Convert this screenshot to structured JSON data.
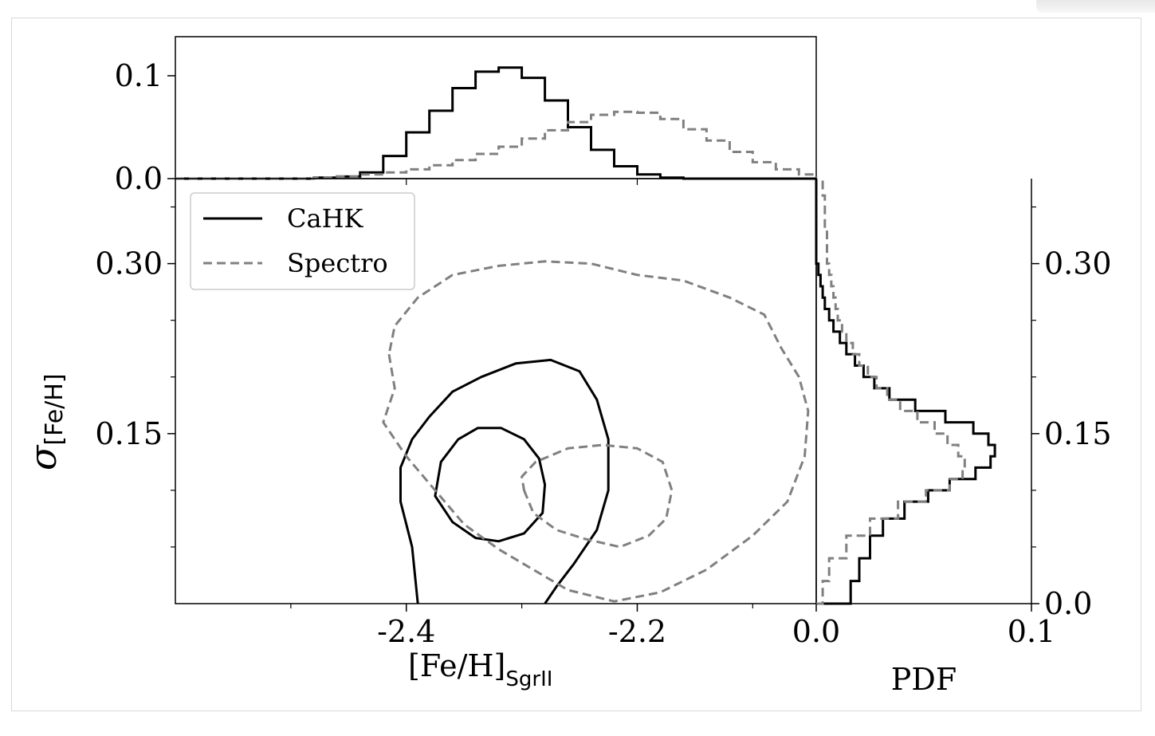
{
  "chart_data": {
    "type": "contour",
    "legend": {
      "placement": "upper-left",
      "entries": [
        {
          "name": "CaHK",
          "style": "solid",
          "color": "#000000"
        },
        {
          "name": "Spectro",
          "style": "dashed",
          "color": "#808080"
        }
      ]
    },
    "main": {
      "xlabel": "[Fe/H]",
      "xlabel_sub": "SgrII",
      "ylabel": "σ",
      "ylabel_sub": "[Fe/H]",
      "xlim": [
        -2.6,
        -2.045
      ],
      "ylim": [
        0.0,
        0.375
      ],
      "xticks": [
        {
          "value": -2.4,
          "label": "-2.4"
        },
        {
          "value": -2.2,
          "label": "-2.2"
        }
      ],
      "yticks": [
        {
          "value": 0.15,
          "label": "0.15"
        },
        {
          "value": 0.3,
          "label": "0.30"
        }
      ],
      "contours": [
        {
          "series": "CaHK",
          "level": "inner",
          "points": [
            [
              -2.375,
              0.095
            ],
            [
              -2.36,
              0.072
            ],
            [
              -2.34,
              0.058
            ],
            [
              -2.32,
              0.055
            ],
            [
              -2.298,
              0.062
            ],
            [
              -2.282,
              0.08
            ],
            [
              -2.28,
              0.105
            ],
            [
              -2.285,
              0.128
            ],
            [
              -2.298,
              0.145
            ],
            [
              -2.318,
              0.155
            ],
            [
              -2.338,
              0.155
            ],
            [
              -2.355,
              0.145
            ],
            [
              -2.37,
              0.125
            ]
          ]
        },
        {
          "series": "CaHK",
          "level": "outer",
          "points": [
            [
              -2.39,
              0.0
            ],
            [
              -2.395,
              0.05
            ],
            [
              -2.405,
              0.09
            ],
            [
              -2.405,
              0.12
            ],
            [
              -2.395,
              0.145
            ],
            [
              -2.38,
              0.165
            ],
            [
              -2.36,
              0.187
            ],
            [
              -2.335,
              0.2
            ],
            [
              -2.305,
              0.212
            ],
            [
              -2.275,
              0.215
            ],
            [
              -2.25,
              0.205
            ],
            [
              -2.235,
              0.18
            ],
            [
              -2.225,
              0.145
            ],
            [
              -2.225,
              0.1
            ],
            [
              -2.235,
              0.065
            ],
            [
              -2.255,
              0.035
            ],
            [
              -2.27,
              0.015
            ],
            [
              -2.28,
              0.0
            ]
          ]
        },
        {
          "series": "Spectro",
          "level": "inner",
          "points": [
            [
              -2.298,
              0.1
            ],
            [
              -2.29,
              0.08
            ],
            [
              -2.27,
              0.065
            ],
            [
              -2.245,
              0.057
            ],
            [
              -2.215,
              0.05
            ],
            [
              -2.19,
              0.06
            ],
            [
              -2.175,
              0.075
            ],
            [
              -2.17,
              0.1
            ],
            [
              -2.178,
              0.125
            ],
            [
              -2.2,
              0.137
            ],
            [
              -2.23,
              0.14
            ],
            [
              -2.26,
              0.137
            ],
            [
              -2.288,
              0.125
            ],
            [
              -2.3,
              0.112
            ]
          ]
        },
        {
          "series": "Spectro",
          "level": "outer",
          "points": [
            [
              -2.415,
              0.22
            ],
            [
              -2.41,
              0.19
            ],
            [
              -2.42,
              0.16
            ],
            [
              -2.4,
              0.13
            ],
            [
              -2.375,
              0.1
            ],
            [
              -2.35,
              0.07
            ],
            [
              -2.32,
              0.048
            ],
            [
              -2.29,
              0.03
            ],
            [
              -2.26,
              0.012
            ],
            [
              -2.22,
              0.002
            ],
            [
              -2.18,
              0.01
            ],
            [
              -2.14,
              0.03
            ],
            [
              -2.1,
              0.06
            ],
            [
              -2.07,
              0.09
            ],
            [
              -2.055,
              0.13
            ],
            [
              -2.052,
              0.17
            ],
            [
              -2.06,
              0.2
            ],
            [
              -2.075,
              0.225
            ],
            [
              -2.09,
              0.255
            ],
            [
              -2.12,
              0.27
            ],
            [
              -2.16,
              0.285
            ],
            [
              -2.2,
              0.29
            ],
            [
              -2.24,
              0.3
            ],
            [
              -2.28,
              0.302
            ],
            [
              -2.32,
              0.298
            ],
            [
              -2.36,
              0.29
            ],
            [
              -2.39,
              0.27
            ],
            [
              -2.41,
              0.245
            ]
          ]
        }
      ]
    },
    "top_marginal": {
      "ylim": [
        0.0,
        0.138
      ],
      "yticks": [
        {
          "value": 0.0,
          "label": "0.0"
        },
        {
          "value": 0.1,
          "label": "0.1"
        }
      ],
      "x": [
        -2.6,
        -2.55,
        -2.5,
        -2.48,
        -2.46,
        -2.44,
        -2.42,
        -2.4,
        -2.38,
        -2.36,
        -2.34,
        -2.32,
        -2.3,
        -2.28,
        -2.26,
        -2.24,
        -2.22,
        -2.2,
        -2.18,
        -2.16,
        -2.14,
        -2.12,
        -2.1,
        -2.08,
        -2.06,
        -2.045
      ],
      "series": [
        {
          "name": "CaHK",
          "values": [
            0,
            0,
            0,
            0.001,
            0.002,
            0.006,
            0.022,
            0.045,
            0.066,
            0.088,
            0.104,
            0.108,
            0.098,
            0.076,
            0.05,
            0.028,
            0.012,
            0.004,
            0.001,
            0,
            0,
            0,
            0,
            0,
            0,
            0
          ]
        },
        {
          "name": "Spectro",
          "values": [
            0,
            0,
            0,
            0.001,
            0.002,
            0.004,
            0.006,
            0.009,
            0.013,
            0.018,
            0.024,
            0.031,
            0.039,
            0.047,
            0.055,
            0.062,
            0.065,
            0.064,
            0.058,
            0.048,
            0.037,
            0.026,
            0.016,
            0.009,
            0.004,
            0.001
          ]
        }
      ]
    },
    "right_marginal": {
      "xlabel": "PDF",
      "xlim": [
        0.0,
        0.1
      ],
      "xticks": [
        {
          "value": 0.0,
          "label": "0.0"
        },
        {
          "value": 0.1,
          "label": "0.1"
        }
      ],
      "yticks": [
        {
          "value": 0.0,
          "label": "0.0"
        },
        {
          "value": 0.15,
          "label": "0.15"
        },
        {
          "value": 0.3,
          "label": "0.30"
        }
      ],
      "y": [
        0.0,
        0.02,
        0.04,
        0.06,
        0.075,
        0.09,
        0.1,
        0.11,
        0.12,
        0.13,
        0.14,
        0.15,
        0.16,
        0.17,
        0.18,
        0.19,
        0.2,
        0.21,
        0.22,
        0.23,
        0.24,
        0.25,
        0.26,
        0.27,
        0.28,
        0.29,
        0.3,
        0.33,
        0.36,
        0.375
      ],
      "series": [
        {
          "name": "CaHK",
          "values": [
            0.016,
            0.02,
            0.025,
            0.031,
            0.041,
            0.052,
            0.062,
            0.074,
            0.081,
            0.083,
            0.08,
            0.073,
            0.06,
            0.046,
            0.034,
            0.027,
            0.022,
            0.018,
            0.014,
            0.011,
            0.008,
            0.006,
            0.004,
            0.003,
            0.002,
            0.001,
            0.0,
            0,
            0,
            0
          ]
        },
        {
          "name": "Spectro",
          "values": [
            0.003,
            0.006,
            0.014,
            0.025,
            0.038,
            0.051,
            0.062,
            0.068,
            0.069,
            0.066,
            0.061,
            0.055,
            0.047,
            0.039,
            0.033,
            0.028,
            0.024,
            0.02,
            0.017,
            0.014,
            0.012,
            0.01,
            0.009,
            0.008,
            0.007,
            0.006,
            0.005,
            0.004,
            0.003,
            0.002
          ]
        }
      ]
    }
  }
}
